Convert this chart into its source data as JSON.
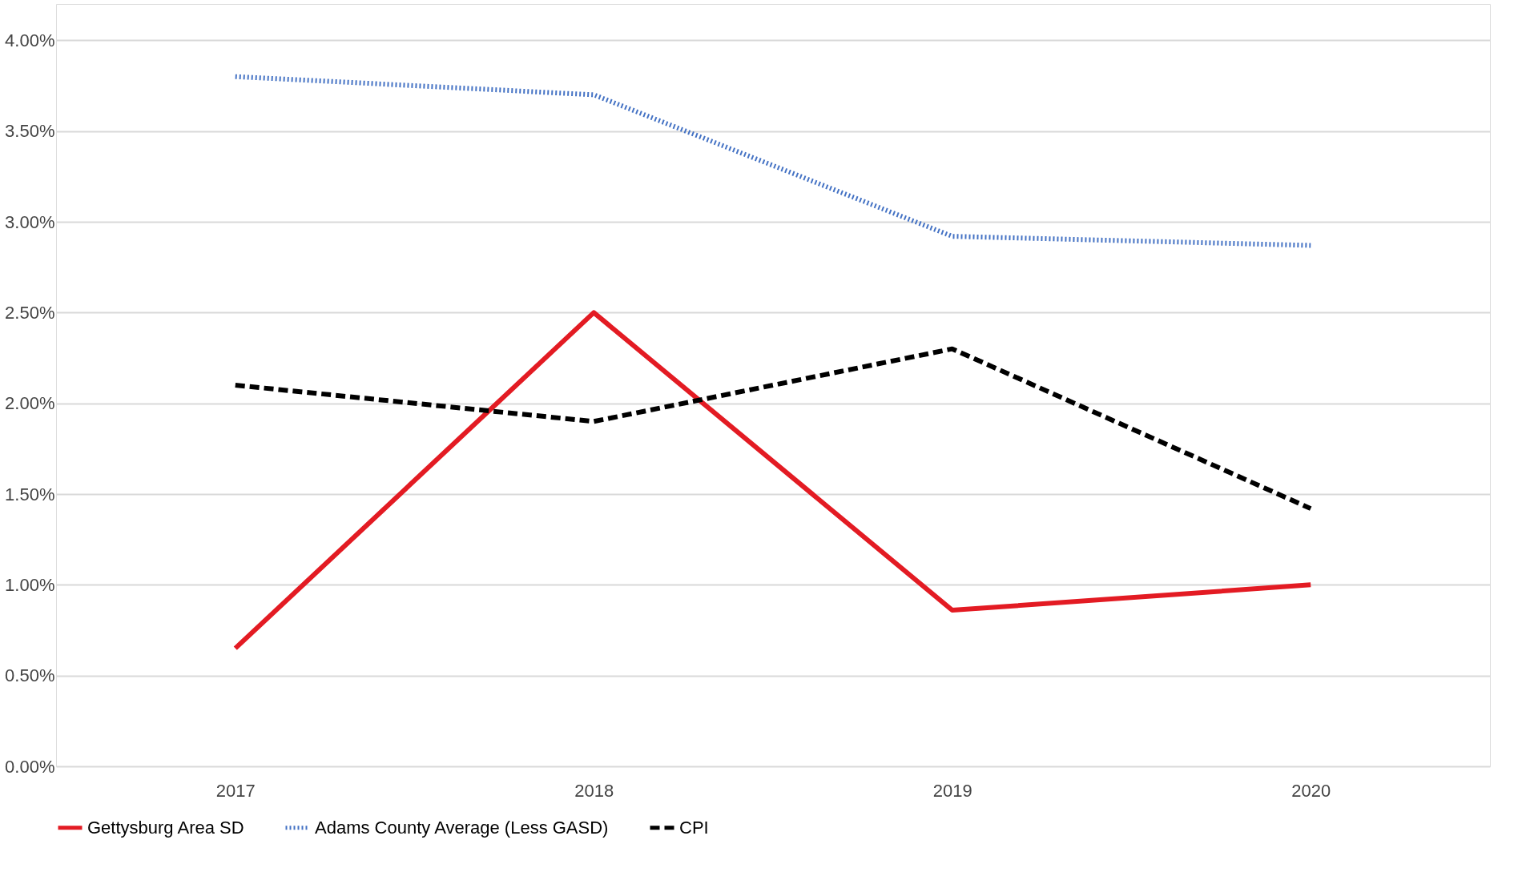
{
  "chart_data": {
    "type": "line",
    "categories": [
      "2017",
      "2018",
      "2019",
      "2020"
    ],
    "series": [
      {
        "name": "Gettysburg Area SD",
        "color": "#e31b23",
        "line_style": "solid",
        "values": [
          0.65,
          2.5,
          0.86,
          1.0
        ]
      },
      {
        "name": "Adams County Average (Less GASD)",
        "color": "#4472c4",
        "line_style": "dotted",
        "values": [
          3.8,
          3.7,
          2.92,
          2.87
        ]
      },
      {
        "name": "CPI",
        "color": "#000000",
        "line_style": "dashed",
        "values": [
          2.1,
          1.9,
          2.3,
          1.42
        ]
      }
    ],
    "ylim": [
      0,
      4.2
    ],
    "yticks": [
      {
        "value": 0,
        "label": "0.00%"
      },
      {
        "value": 0.5,
        "label": "0.50%"
      },
      {
        "value": 1,
        "label": "1.00%"
      },
      {
        "value": 1.5,
        "label": "1.50%"
      },
      {
        "value": 2,
        "label": "2.00%"
      },
      {
        "value": 2.5,
        "label": "2.50%"
      },
      {
        "value": 3,
        "label": "3.00%"
      },
      {
        "value": 3.5,
        "label": "3.50%"
      },
      {
        "value": 4,
        "label": "4.00%"
      }
    ],
    "grid": "y",
    "legend": "bottom",
    "marker": "none"
  }
}
